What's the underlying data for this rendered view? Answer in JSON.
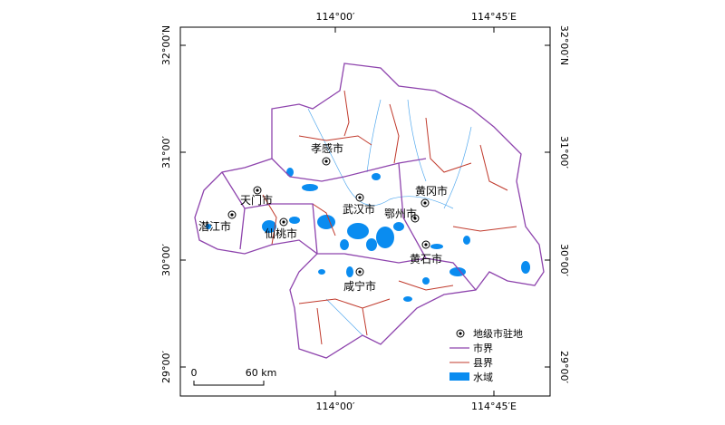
{
  "map": {
    "top_labels": [
      "114°00′",
      "114°45′E"
    ],
    "bottom_labels": [
      "114°00′",
      "114°45′E"
    ],
    "left_labels": [
      "32°00′N",
      "31°00′",
      "30°00′",
      "29°00′"
    ],
    "right_labels": [
      "32°00′N",
      "31°00′",
      "30°00′",
      "29°00′"
    ],
    "cities": [
      "孝感市",
      "天门市",
      "潜江市",
      "仙桃市",
      "武汉市",
      "黄冈市",
      "鄂州市",
      "黄石市",
      "咸宁市"
    ],
    "legend": [
      "地级市驻地",
      "市界",
      "县界",
      "水域"
    ],
    "scale": [
      "0",
      "60 km"
    ]
  }
}
